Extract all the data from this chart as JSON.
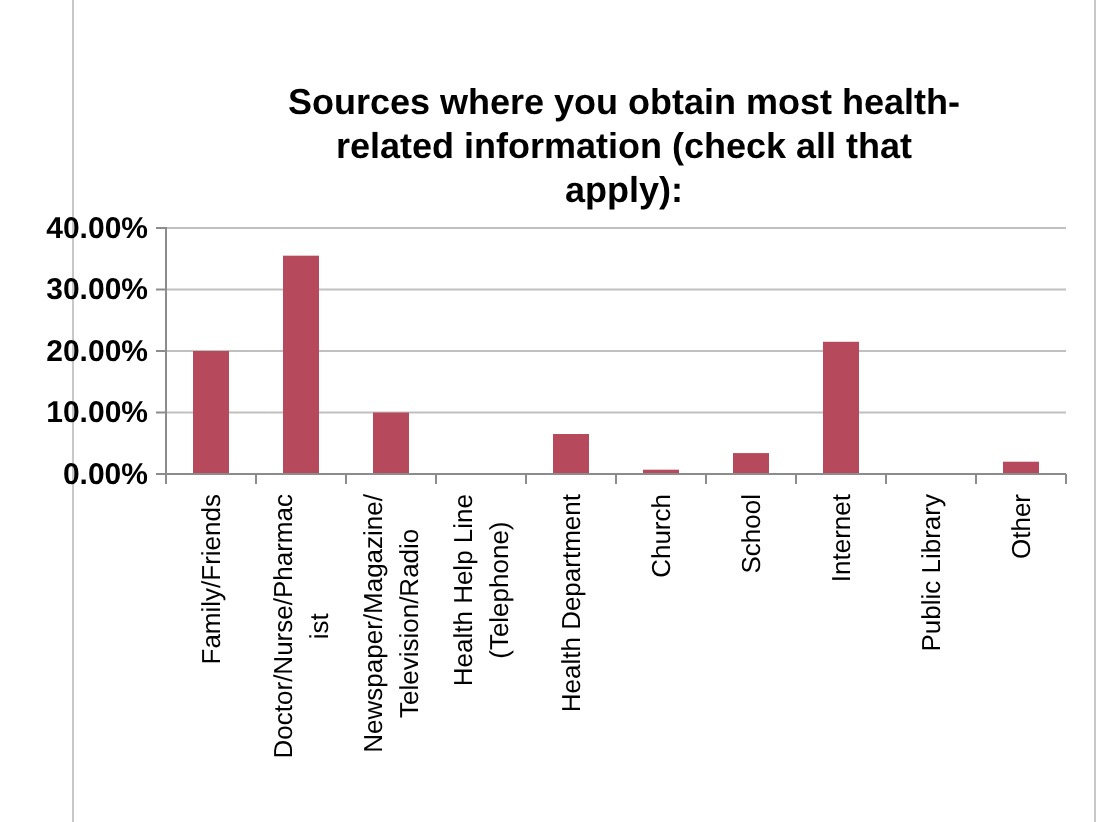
{
  "chart_data": {
    "type": "bar",
    "title": "Sources where you obtain most health-\nrelated information (check all that\napply):",
    "categories": [
      "Family/Friends",
      "Doctor/Nurse/Pharmac\nist",
      "Newspaper/Magazine/\nTelevision/Radio",
      "Health Help Line\n(Telephone)",
      "Health Department",
      "Church",
      "School",
      "Internet",
      "Public Library",
      "Other"
    ],
    "values": [
      20,
      35.5,
      10,
      0,
      6.5,
      0.7,
      3.4,
      21.5,
      0,
      2
    ],
    "color": "#b6495c",
    "ylim": [
      0,
      40
    ],
    "yticks": [
      {
        "value": 0,
        "label": "0.00%"
      },
      {
        "value": 10,
        "label": "10.00%"
      },
      {
        "value": 20,
        "label": "20.00%"
      },
      {
        "value": 30,
        "label": "30.00%"
      },
      {
        "value": 40,
        "label": "40.00%"
      }
    ],
    "grid": "y"
  }
}
